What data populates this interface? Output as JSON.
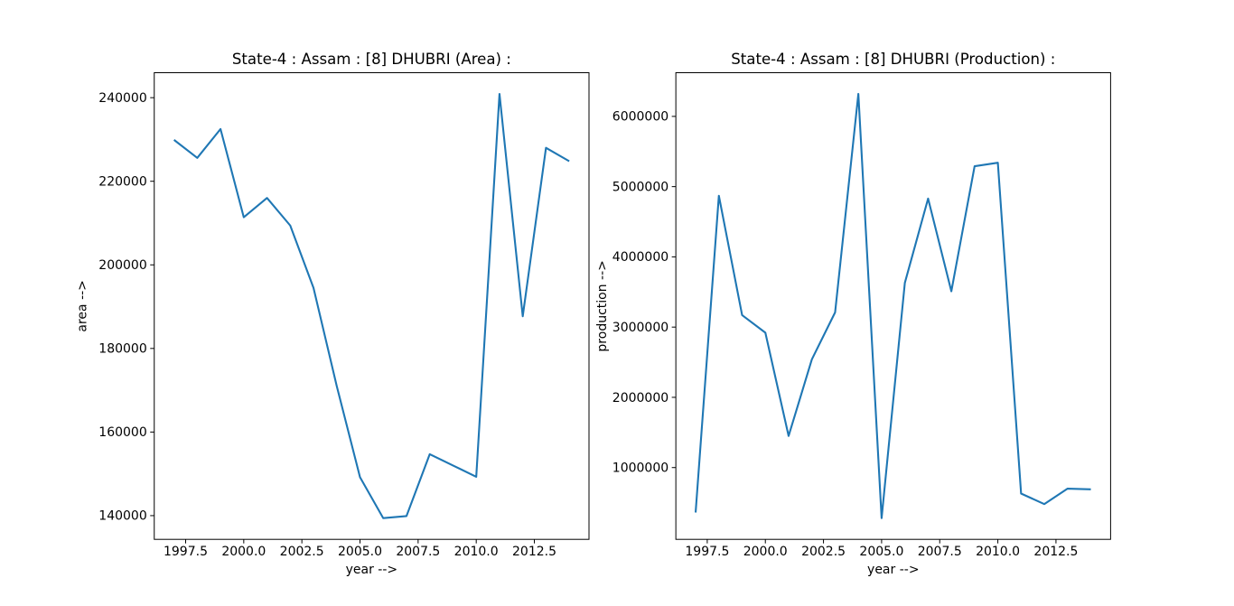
{
  "figure": {
    "background": "#ffffff",
    "text_color": "#000000"
  },
  "chart_data": [
    {
      "type": "line",
      "title": "State-4 : Assam : [8] DHUBRI (Area) :",
      "xlabel": "year -->",
      "ylabel": "area -->",
      "grid": false,
      "legend": "none",
      "line_color": "#1f77b4",
      "x": [
        1997,
        1998,
        1999,
        2000,
        2001,
        2002,
        2003,
        2004,
        2005,
        2006,
        2007,
        2008,
        2009,
        2010,
        2011,
        2012,
        2013,
        2014
      ],
      "values": [
        229900,
        225600,
        232500,
        211400,
        216000,
        209400,
        194500,
        171000,
        149200,
        139400,
        139900,
        154700,
        152000,
        149300,
        240900,
        187700,
        228000,
        224800
      ],
      "xlim": [
        1996.15,
        2014.85
      ],
      "ylim": [
        134325,
        245975
      ],
      "xtick_values": [
        1997.5,
        2000.0,
        2002.5,
        2005.0,
        2007.5,
        2010.0,
        2012.5
      ],
      "xtick_labels": [
        "1997.5",
        "2000.0",
        "2002.5",
        "2005.0",
        "2007.5",
        "2010.0",
        "2012.5"
      ],
      "ytick_values": [
        140000,
        160000,
        180000,
        200000,
        220000,
        240000
      ],
      "ytick_labels": [
        "140000",
        "160000",
        "180000",
        "200000",
        "220000",
        "240000"
      ]
    },
    {
      "type": "line",
      "title": "State-4 : Assam : [8] DHUBRI (Production) :",
      "xlabel": "year -->",
      "ylabel": "production -->",
      "grid": false,
      "legend": "none",
      "line_color": "#1f77b4",
      "x": [
        1997,
        1998,
        1999,
        2000,
        2001,
        2002,
        2003,
        2004,
        2005,
        2006,
        2007,
        2008,
        2009,
        2010,
        2011,
        2012,
        2013,
        2014
      ],
      "values": [
        360000,
        4870000,
        3170000,
        2920000,
        1450000,
        2540000,
        3210000,
        6320000,
        280000,
        3630000,
        4830000,
        3510000,
        5290000,
        5340000,
        630000,
        480000,
        700000,
        690000
      ],
      "xlim": [
        1996.15,
        2014.85
      ],
      "ylim": [
        -22000,
        6622000
      ],
      "xtick_values": [
        1997.5,
        2000.0,
        2002.5,
        2005.0,
        2007.5,
        2010.0,
        2012.5
      ],
      "xtick_labels": [
        "1997.5",
        "2000.0",
        "2002.5",
        "2005.0",
        "2007.5",
        "2010.0",
        "2012.5"
      ],
      "ytick_values": [
        1000000,
        2000000,
        3000000,
        4000000,
        5000000,
        6000000
      ],
      "ytick_labels": [
        "1000000",
        "2000000",
        "3000000",
        "4000000",
        "5000000",
        "6000000"
      ]
    }
  ]
}
